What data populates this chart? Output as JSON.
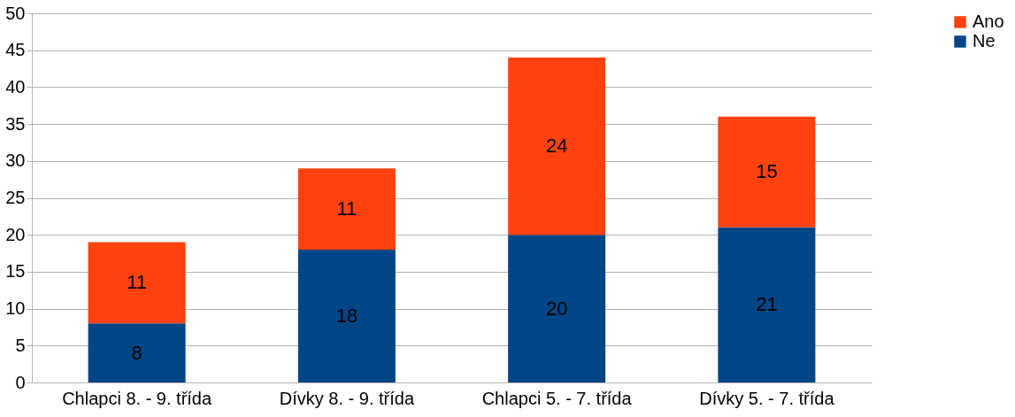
{
  "chart_data": {
    "type": "bar",
    "stacked": true,
    "categories": [
      "Chlapci 8. - 9. třída",
      "Dívky 8. - 9. třída",
      "Chlapci 5. - 7. třída",
      "Dívky 5. - 7. třída"
    ],
    "series": [
      {
        "name": "Ne",
        "color": "#004586",
        "values": [
          8,
          18,
          20,
          21
        ]
      },
      {
        "name": "Ano",
        "color": "#ff420e",
        "values": [
          11,
          11,
          24,
          15
        ]
      }
    ],
    "ylim": [
      0,
      50
    ],
    "yticks": [
      0,
      5,
      10,
      15,
      20,
      25,
      30,
      35,
      40,
      45,
      50
    ],
    "grid": "y",
    "legend": "right",
    "data_labels": true
  }
}
